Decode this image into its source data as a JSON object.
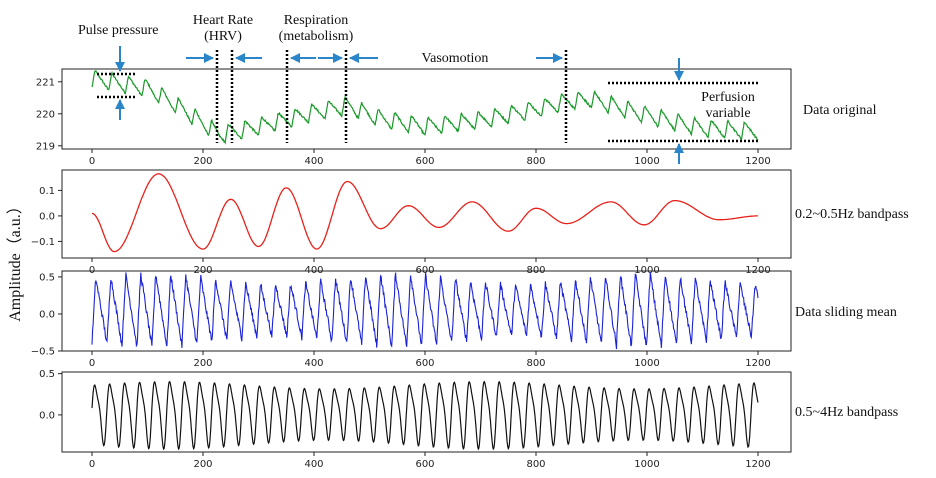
{
  "figure": {
    "ylabel": "Amplitude（a.u.）"
  },
  "annotations": {
    "pulse_pressure": "Pulse pressure",
    "heart_rate_1": "Heart Rate",
    "heart_rate_2": "(HRV)",
    "respiration_1": "Respiration",
    "respiration_2": "(metabolism)",
    "vasomotion": "Vasomotion",
    "perfusion_1": "Perfusion",
    "perfusion_2": "variable",
    "arrow_color": "#2a86c8"
  },
  "chart_data": [
    {
      "type": "line",
      "label": "Data original",
      "color": "#1a9a2a",
      "xlim": [
        0,
        1200
      ],
      "ylim": [
        218.9,
        221.4
      ],
      "xticks": [
        0,
        200,
        400,
        600,
        800,
        1000,
        1200
      ],
      "yticks": [
        219,
        220,
        221
      ],
      "baseline_points": [
        [
          0,
          221.1
        ],
        [
          100,
          220.8
        ],
        [
          150,
          220.3
        ],
        [
          230,
          219.35
        ],
        [
          300,
          219.6
        ],
        [
          400,
          220.05
        ],
        [
          460,
          220.25
        ],
        [
          520,
          219.85
        ],
        [
          600,
          219.6
        ],
        [
          700,
          219.8
        ],
        [
          800,
          220.15
        ],
        [
          860,
          220.4
        ],
        [
          900,
          220.45
        ],
        [
          1000,
          219.95
        ],
        [
          1100,
          219.55
        ],
        [
          1200,
          219.45
        ]
      ],
      "pulse_amplitude": 0.55,
      "oscillation_period": 30
    },
    {
      "type": "line",
      "label": "0.2~0.5Hz bandpass",
      "color": "#e8221a",
      "xlim": [
        0,
        1200
      ],
      "ylim": [
        -0.165,
        0.18
      ],
      "xticks": [
        0,
        200,
        400,
        600,
        800,
        1000,
        1200
      ],
      "yticks": [
        -0.1,
        0.0,
        0.1
      ],
      "yticklabels": [
        "−0.1",
        "0.0",
        "0.1"
      ],
      "extrema": [
        [
          0,
          0.01
        ],
        [
          40,
          -0.14
        ],
        [
          120,
          0.165
        ],
        [
          200,
          -0.13
        ],
        [
          250,
          0.065
        ],
        [
          300,
          -0.12
        ],
        [
          350,
          0.11
        ],
        [
          405,
          -0.13
        ],
        [
          460,
          0.135
        ],
        [
          520,
          -0.05
        ],
        [
          570,
          0.04
        ],
        [
          625,
          -0.045
        ],
        [
          685,
          0.055
        ],
        [
          750,
          -0.06
        ],
        [
          800,
          0.03
        ],
        [
          855,
          -0.03
        ],
        [
          935,
          0.055
        ],
        [
          995,
          -0.035
        ],
        [
          1050,
          0.06
        ],
        [
          1130,
          -0.015
        ],
        [
          1200,
          0.0
        ]
      ]
    },
    {
      "type": "line",
      "label": "Data sliding mean",
      "color": "#1a22d8",
      "xlim": [
        0,
        1200
      ],
      "ylim": [
        -0.5,
        0.58
      ],
      "xticks": [
        0,
        200,
        400,
        600,
        800,
        1000,
        1200
      ],
      "yticks": [
        -0.5,
        0.0,
        0.5
      ],
      "yticklabels": [
        "−0.5",
        "0.0",
        "0.5"
      ],
      "amplitude_range": [
        -0.45,
        0.55
      ],
      "oscillation_period": 27
    },
    {
      "type": "line",
      "label": "0.5~4Hz bandpass",
      "color": "#111111",
      "xlim": [
        0,
        1200
      ],
      "ylim": [
        -0.45,
        0.52
      ],
      "xticks": [
        0,
        200,
        400,
        600,
        800,
        1000,
        1200
      ],
      "yticks": [
        0.0,
        0.5
      ],
      "yticklabels": [
        "0.0",
        "0.5"
      ],
      "amplitude_range": [
        -0.4,
        0.47
      ],
      "oscillation_period": 27
    }
  ]
}
